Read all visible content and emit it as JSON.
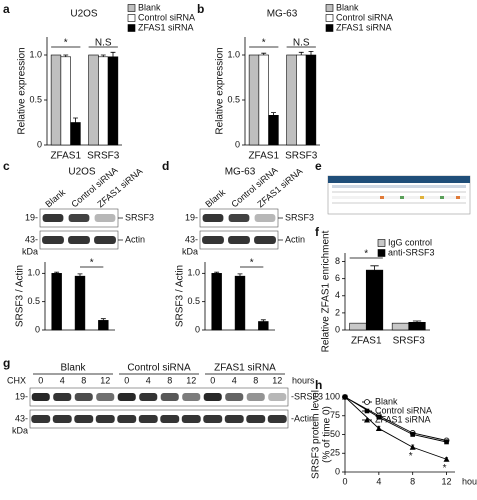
{
  "panel_labels": [
    "a",
    "b",
    "c",
    "d",
    "e",
    "f",
    "g",
    "h"
  ],
  "blots": [
    {
      "title": "U2OS",
      "lanes": [
        "Blank",
        "Control siRNA",
        "ZFAS1 siRNA"
      ],
      "markers": [
        "19-",
        "43-"
      ],
      "unit": "kDa",
      "proteins": [
        "SRSF3",
        "Actin"
      ]
    },
    {
      "title": "MG-63",
      "lanes": [
        "Blank",
        "Control siRNA",
        "ZFAS1 siRNA"
      ],
      "markers": [
        "19-",
        "43-"
      ],
      "unit": "kDa",
      "proteins": [
        "SRSF3",
        "Actin"
      ]
    },
    {
      "treatment": "CHX",
      "groups": [
        "Blank",
        "Control siRNA",
        "ZFAS1 siRNA"
      ],
      "lanes": [
        "0",
        "4",
        "8",
        "12"
      ],
      "time_unit": "hours",
      "markers": [
        "19-",
        "43-"
      ],
      "unit": "kDa",
      "proteins": [
        "-SRSF3",
        "-Actin"
      ]
    }
  ],
  "chart_data": [
    {
      "type": "bar",
      "title": "U2OS",
      "y_label": "Relative expression",
      "categories": [
        "ZFAS1",
        "SRSF3"
      ],
      "series": [
        {
          "name": "Blank",
          "color": "#bfbfbf",
          "values": [
            1,
            1
          ]
        },
        {
          "name": "Control siRNA",
          "color": "#ffffff",
          "values": [
            0.98,
            0.98
          ],
          "errors": [
            0.02,
            0.02
          ]
        },
        {
          "name": "ZFAS1 siRNA",
          "color": "#000000",
          "values": [
            0.25,
            0.98
          ],
          "errors": [
            0.05,
            0.05
          ]
        }
      ],
      "ylim": [
        0,
        1.2
      ],
      "yticks": [
        0,
        0.5,
        {
          "value": 1,
          "label": "1.0"
        }
      ],
      "annotations": [
        "*",
        "N.S"
      ]
    },
    {
      "type": "bar",
      "title": "MG-63",
      "y_label": "Relative expression",
      "categories": [
        "ZFAS1",
        "SRSF3"
      ],
      "series": [
        {
          "name": "Blank",
          "color": "#bfbfbf",
          "values": [
            1,
            1
          ]
        },
        {
          "name": "Control siRNA",
          "color": "#ffffff",
          "values": [
            1,
            1
          ],
          "errors": [
            0.02,
            0.03
          ]
        },
        {
          "name": "ZFAS1 siRNA",
          "color": "#000000",
          "values": [
            0.33,
            1
          ],
          "errors": [
            0.03,
            0.04
          ]
        }
      ],
      "ylim": [
        0,
        1.2
      ],
      "yticks": [
        0,
        0.5,
        {
          "value": 1,
          "label": "1.0"
        }
      ],
      "annotations": [
        "*",
        "N.S"
      ]
    },
    {
      "type": "bar",
      "y_label": "SRSF3 / Actin",
      "categories": [
        null,
        null,
        null
      ],
      "series": [
        {
          "color": "#000000",
          "values": [
            1,
            0.95,
            0.17
          ],
          "errors": [
            0.02,
            0.04,
            0.03
          ]
        }
      ],
      "ylim": [
        0,
        1.2
      ],
      "yticks": [
        0,
        0.5,
        {
          "value": 1,
          "label": "1.0"
        }
      ],
      "annotations": [
        "*"
      ]
    },
    {
      "type": "bar",
      "y_label": "SRSF3 / Actin",
      "categories": [
        null,
        null,
        null
      ],
      "series": [
        {
          "color": "#000000",
          "values": [
            1,
            0.95,
            0.15
          ],
          "errors": [
            0.02,
            0.04,
            0.03
          ]
        }
      ],
      "ylim": [
        0,
        1.2
      ],
      "yticks": [
        0,
        0.5,
        {
          "value": 1,
          "label": "1.0"
        }
      ],
      "annotations": [
        "*"
      ]
    },
    {
      "type": "bar",
      "y_label": "Relative ZFAS1 enrichment",
      "categories": [
        "ZFAS1",
        "SRSF3"
      ],
      "series": [
        {
          "name": "IgG control",
          "color": "#c8c8c8",
          "values": [
            0.8,
            0.8
          ]
        },
        {
          "name": "anti-SRSF3",
          "color": "#000000",
          "values": [
            7,
            0.9
          ],
          "errors": [
            0.5,
            0.15
          ]
        }
      ],
      "ylim": [
        0,
        9
      ],
      "yticks": [
        0,
        2,
        4,
        6,
        8
      ],
      "annotations": [
        "*"
      ]
    },
    {
      "type": "line",
      "y_label": [
        "SRSF3 protein level",
        "(% of time 0)"
      ],
      "x_label": "hours",
      "x": [
        0,
        4,
        8,
        12
      ],
      "xlim": [
        0,
        13
      ],
      "xticks": [
        0,
        4,
        8,
        12
      ],
      "ylim": [
        0,
        100
      ],
      "yticks": [
        0,
        25,
        50,
        75,
        100
      ],
      "series": [
        {
          "name": "Blank",
          "color": "#000000",
          "marker": "open-circle",
          "values": [
            100,
            75,
            52,
            42
          ],
          "errors": [
            0,
            3,
            3,
            3
          ]
        },
        {
          "name": "Control siRNA",
          "color": "#000000",
          "marker": "filled-square",
          "values": [
            100,
            73,
            50,
            40
          ],
          "errors": [
            0,
            3,
            3,
            3
          ]
        },
        {
          "name": "ZFAS1 siRNA",
          "color": "#000000",
          "marker": "filled-triangle",
          "values": [
            100,
            58,
            33,
            17
          ],
          "errors": [
            0,
            3,
            3,
            2
          ]
        }
      ],
      "annotations": [
        "*",
        "*"
      ]
    }
  ]
}
